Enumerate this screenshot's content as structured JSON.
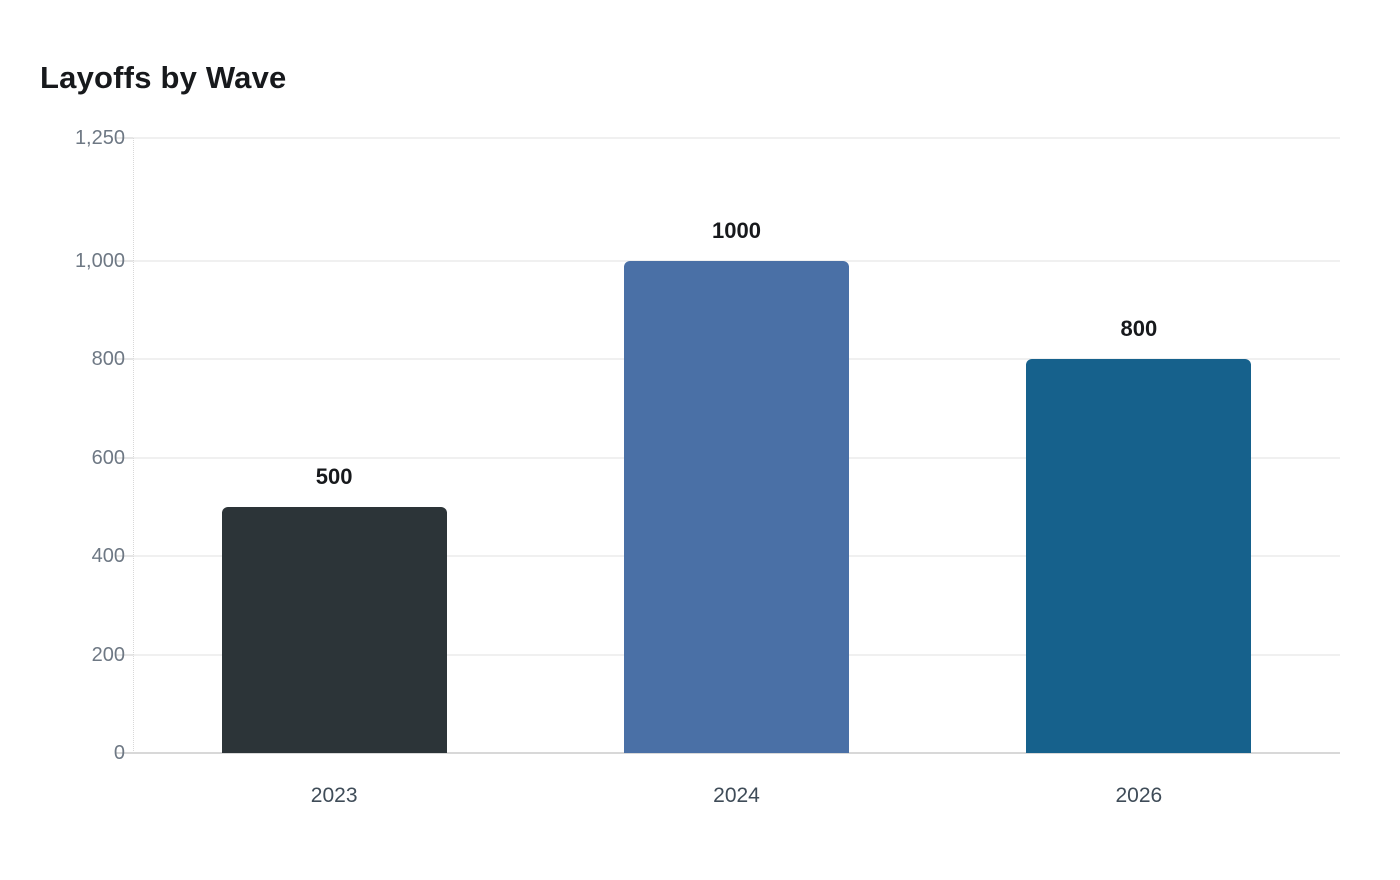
{
  "header": {
    "title": "Layoffs by Wave"
  },
  "chart_data": {
    "type": "bar",
    "title": "Layoffs by Wave",
    "categories": [
      "2023",
      "2024",
      "2026"
    ],
    "values": [
      500,
      1000,
      800
    ],
    "data_labels": [
      "500",
      "1000",
      "800"
    ],
    "bar_colors": [
      "#2c3438",
      "#4a70a6",
      "#16618c"
    ],
    "xlabel": "",
    "ylabel": "",
    "ylim": [
      0,
      1250
    ],
    "yticks": [
      {
        "value": 0,
        "label": "0"
      },
      {
        "value": 200,
        "label": "200"
      },
      {
        "value": 400,
        "label": "400"
      },
      {
        "value": 600,
        "label": "600"
      },
      {
        "value": 800,
        "label": "800"
      },
      {
        "value": 1000,
        "label": "1,000"
      },
      {
        "value": 1250,
        "label": "1,250"
      }
    ],
    "grid": "horizontal",
    "legend": false
  },
  "style": {
    "background": "#ffffff",
    "title_color": "#17191c",
    "value_label_color": "#17191c",
    "ytick_color": "#6e7884",
    "xtick_color": "#3f4c58",
    "gridline_color": "#f0f0f0",
    "baseline_color": "#d8d8d8"
  }
}
